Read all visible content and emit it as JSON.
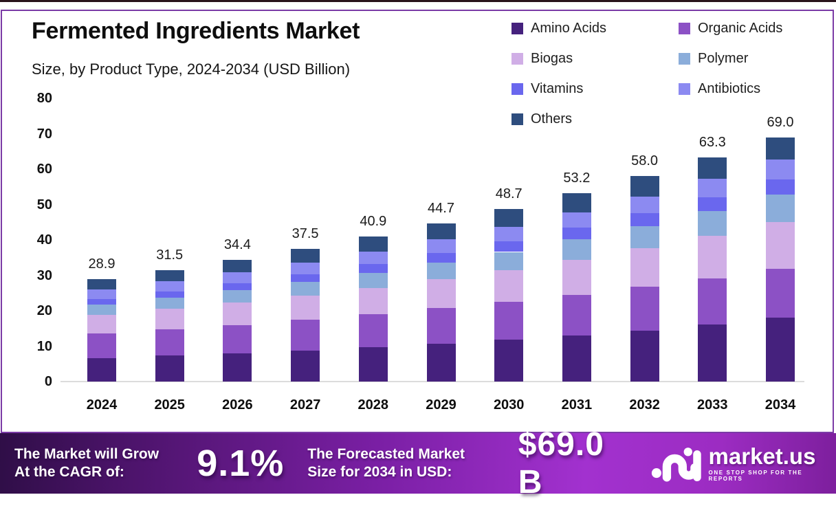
{
  "header": {
    "title": "Fermented Ingredients Market",
    "subtitle": "Size, by Product Type, 2024-2034 (USD Billion)"
  },
  "chart_data": {
    "type": "bar",
    "stacked": true,
    "categories": [
      "2024",
      "2025",
      "2026",
      "2027",
      "2028",
      "2029",
      "2030",
      "2031",
      "2032",
      "2033",
      "2034"
    ],
    "series": [
      {
        "name": "Amino Acids",
        "color": "#45217d",
        "values": [
          6.6,
          7.3,
          8.0,
          8.8,
          9.7,
          10.7,
          11.8,
          13.0,
          14.4,
          16.1,
          18.0
        ]
      },
      {
        "name": "Organic Acids",
        "color": "#8c51c5",
        "values": [
          6.9,
          7.4,
          8.0,
          8.6,
          9.3,
          10.0,
          10.7,
          11.5,
          12.3,
          13.1,
          13.9
        ]
      },
      {
        "name": "Biogas",
        "color": "#d0aee6",
        "values": [
          5.3,
          5.8,
          6.3,
          6.9,
          7.5,
          8.2,
          9.0,
          9.9,
          10.9,
          12.0,
          13.2
        ]
      },
      {
        "name": "Polymer",
        "color": "#8badda",
        "values": [
          2.9,
          3.2,
          3.5,
          3.8,
          4.2,
          4.6,
          5.1,
          5.7,
          6.3,
          7.0,
          7.8
        ]
      },
      {
        "name": "Vitamins",
        "color": "#6a67ee",
        "values": [
          1.6,
          1.8,
          2.0,
          2.2,
          2.5,
          2.8,
          3.0,
          3.3,
          3.6,
          3.9,
          4.2
        ]
      },
      {
        "name": "Antibiotics",
        "color": "#8c8af1",
        "values": [
          2.8,
          2.9,
          3.1,
          3.3,
          3.5,
          3.8,
          4.1,
          4.4,
          4.8,
          5.2,
          5.6
        ]
      },
      {
        "name": "Others",
        "color": "#2e4d7e",
        "values": [
          2.8,
          3.1,
          3.5,
          3.9,
          4.2,
          4.6,
          5.0,
          5.4,
          5.7,
          6.0,
          6.3
        ]
      }
    ],
    "totals": [
      28.9,
      31.5,
      34.4,
      37.5,
      40.9,
      44.7,
      48.7,
      53.2,
      58.0,
      63.3,
      69.0
    ],
    "ylim": [
      0,
      80
    ],
    "yticks": [
      0,
      10,
      20,
      30,
      40,
      50,
      60,
      70,
      80
    ],
    "grid": false,
    "legend_position": "top-right",
    "title": "Fermented Ingredients Market",
    "subtitle": "Size, by Product Type, 2024-2034 (USD Billion)",
    "xlabel": "",
    "ylabel": "USD Billion"
  },
  "footer": {
    "cagr_line1": "The Market will Grow",
    "cagr_line2": "At the CAGR of:",
    "cagr_value": "9.1%",
    "forecast_line1": "The Forecasted Market",
    "forecast_line2": "Size for 2034 in USD:",
    "forecast_value": "$69.0 B",
    "brand": "market.us",
    "brand_tagline": "ONE STOP SHOP FOR THE REPORTS"
  },
  "colors": {
    "card_border": "#7b3ba6",
    "banner_gradient": [
      "#2f0e47",
      "#7a1fa4",
      "#a231cf",
      "#7d1f9d"
    ],
    "axis_line": "#dcdcdc",
    "text": "#111111"
  }
}
